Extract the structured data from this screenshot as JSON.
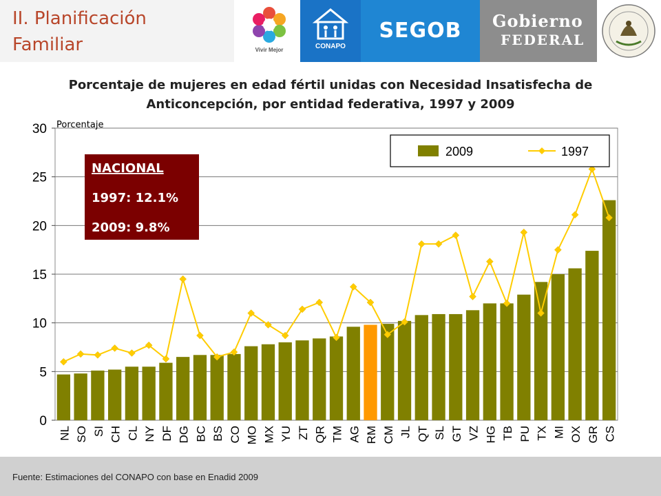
{
  "header": {
    "section_title_line1": "II. Planificación",
    "section_title_line2": "Familiar",
    "logos": {
      "vivir": "Vivir Mejor",
      "conapo": "CONAPO",
      "segob": "SEGOB",
      "gobierno_line1": "Gobierno",
      "gobierno_line2": "FEDERAL",
      "escudo": "ESTADOS UNIDOS MEXICANOS"
    }
  },
  "chart_title_line1": "Porcentaje de mujeres en edad fértil unidas con Necesidad Insatisfecha de",
  "chart_title_line2": "Anticoncepción, por entidad federativa, 1997 y 2009",
  "nacional_box": {
    "title": "NACIONAL",
    "line1": "1997: 12.1%",
    "line2": "2009: 9.8%"
  },
  "footer": "Fuente: Estimaciones del CONAPO con base en Enadid 2009",
  "colors": {
    "bar": "#808000",
    "bar_highlight": "#ff9900",
    "line": "#ffcc00",
    "box": "#7b0000",
    "title_orange": "#b8462a"
  },
  "chart_data": {
    "type": "bar",
    "ylabel": "Porcentaje",
    "ylim": [
      0,
      30
    ],
    "yticks": [
      0,
      5,
      10,
      15,
      20,
      25,
      30
    ],
    "grid": true,
    "legend_position": "top-right",
    "highlight_category": "RM",
    "categories": [
      "NL",
      "SO",
      "SI",
      "CH",
      "CL",
      "NY",
      "DF",
      "DG",
      "BC",
      "BS",
      "CO",
      "MO",
      "MX",
      "YU",
      "ZT",
      "QR",
      "TM",
      "AG",
      "RM",
      "CM",
      "JL",
      "QT",
      "SL",
      "GT",
      "VZ",
      "HG",
      "TB",
      "PU",
      "TX",
      "MI",
      "OX",
      "GR",
      "CS"
    ],
    "series": [
      {
        "name": "2009",
        "type": "bar",
        "values": [
          4.7,
          4.8,
          5.1,
          5.2,
          5.5,
          5.5,
          5.9,
          6.5,
          6.7,
          6.7,
          6.8,
          7.6,
          7.8,
          8.0,
          8.2,
          8.4,
          8.6,
          9.6,
          9.8,
          9.9,
          10.2,
          10.8,
          10.9,
          10.9,
          11.3,
          12.0,
          12.0,
          12.9,
          14.2,
          15.0,
          15.6,
          17.4,
          22.6
        ]
      },
      {
        "name": "1997",
        "type": "line",
        "values": [
          6.0,
          6.8,
          6.7,
          7.4,
          6.9,
          7.7,
          6.3,
          14.5,
          8.7,
          6.5,
          7.0,
          11.0,
          9.8,
          8.7,
          11.4,
          12.1,
          8.5,
          13.7,
          12.1,
          8.8,
          10.1,
          18.1,
          18.1,
          19.0,
          12.7,
          16.3,
          12.0,
          19.3,
          11.0,
          17.5,
          21.1,
          25.8,
          20.8
        ]
      }
    ]
  }
}
